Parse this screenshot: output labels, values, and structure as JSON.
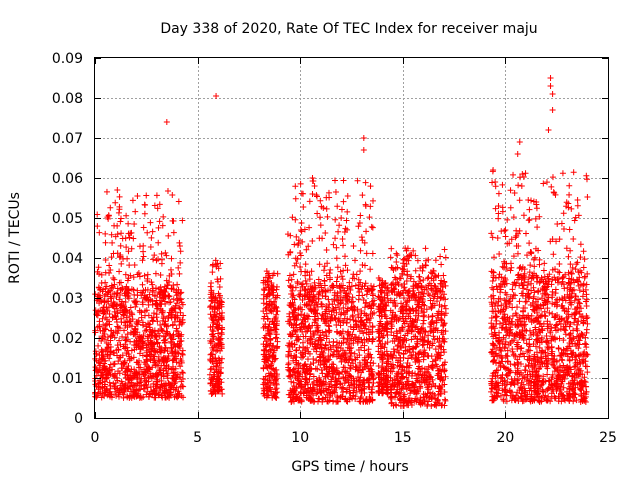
{
  "chart_data": {
    "type": "scatter",
    "title": "Day 338 of 2020, Rate Of TEC Index for receiver maju",
    "xlabel": "GPS time / hours",
    "ylabel": "ROTI / TECUs",
    "xlim": [
      0,
      25
    ],
    "ylim": [
      0,
      0.09
    ],
    "xticks": [
      "0",
      "5",
      "10",
      "15",
      "20",
      "25"
    ],
    "yticks": [
      "0",
      "0.01",
      "0.02",
      "0.03",
      "0.04",
      "0.05",
      "0.06",
      "0.07",
      "0.08",
      "0.09"
    ],
    "grid": true,
    "marker": "+",
    "color": "#ff0000",
    "segments": [
      {
        "x_start": 0.0,
        "x_end": 4.3,
        "y_min": 0.005,
        "y_typ_max": 0.032,
        "y_peak": 0.057
      },
      {
        "x_start": 5.6,
        "x_end": 6.2,
        "y_min": 0.006,
        "y_typ_max": 0.03,
        "y_peak": 0.04
      },
      {
        "x_start": 8.2,
        "x_end": 8.9,
        "y_min": 0.005,
        "y_typ_max": 0.032,
        "y_peak": 0.038
      },
      {
        "x_start": 9.4,
        "x_end": 13.6,
        "y_min": 0.004,
        "y_typ_max": 0.033,
        "y_peak": 0.06
      },
      {
        "x_start": 13.8,
        "x_end": 14.3,
        "y_min": 0.006,
        "y_typ_max": 0.03,
        "y_peak": 0.035
      },
      {
        "x_start": 14.4,
        "x_end": 17.1,
        "y_min": 0.003,
        "y_typ_max": 0.033,
        "y_peak": 0.043
      },
      {
        "x_start": 19.3,
        "x_end": 24.0,
        "y_min": 0.004,
        "y_typ_max": 0.035,
        "y_peak": 0.062
      }
    ],
    "outliers": [
      {
        "x": 3.5,
        "y": 0.074
      },
      {
        "x": 5.9,
        "y": 0.0805
      },
      {
        "x": 13.1,
        "y": 0.07
      },
      {
        "x": 13.1,
        "y": 0.067
      },
      {
        "x": 13.2,
        "y": 0.053
      },
      {
        "x": 22.2,
        "y": 0.085
      },
      {
        "x": 22.2,
        "y": 0.083
      },
      {
        "x": 22.3,
        "y": 0.081
      },
      {
        "x": 22.3,
        "y": 0.077
      },
      {
        "x": 22.1,
        "y": 0.072
      },
      {
        "x": 20.7,
        "y": 0.069
      },
      {
        "x": 20.6,
        "y": 0.066
      },
      {
        "x": 20.8,
        "y": 0.058
      },
      {
        "x": 21.5,
        "y": 0.054
      },
      {
        "x": 19.4,
        "y": 0.062
      },
      {
        "x": 19.5,
        "y": 0.059
      },
      {
        "x": 10.6,
        "y": 0.06
      },
      {
        "x": 10.7,
        "y": 0.058
      },
      {
        "x": 10.6,
        "y": 0.056
      }
    ]
  }
}
